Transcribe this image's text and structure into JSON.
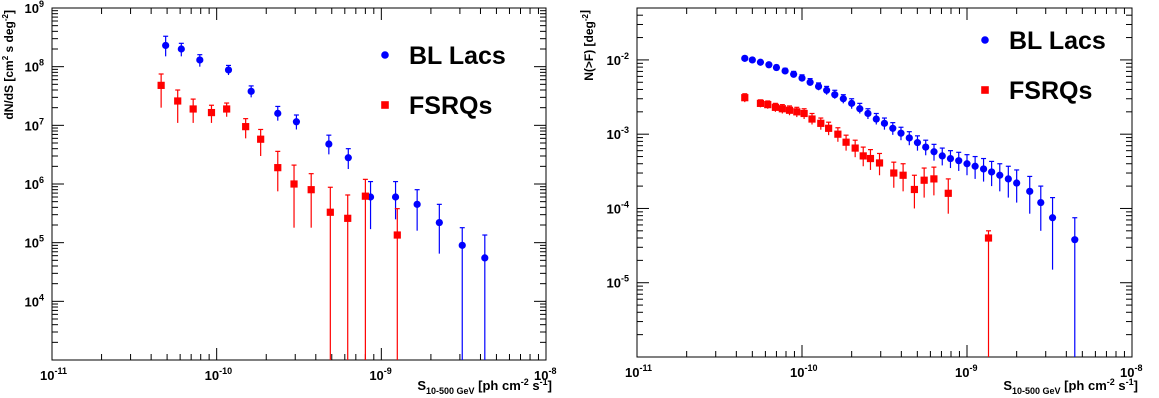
{
  "chart_data": [
    {
      "type": "scatter",
      "xscale": "log",
      "yscale": "log",
      "xlim": [
        1e-11,
        1e-08
      ],
      "ylim": [
        1000,
        1000000000.0
      ],
      "xlabel": {
        "main": "S",
        "sub": "10-500 GeV",
        "rest": " [ph cm",
        "sup": "-2",
        "rest2": " s",
        "sup2": "-1",
        "end": "]"
      },
      "ylabel": {
        "main": "dN/dS [cm",
        "sup": "2",
        "rest": " s deg",
        "sup2": "-2",
        "end": "]"
      },
      "xticks": [
        {
          "base": "10",
          "exp": "-11",
          "value": 1e-11
        },
        {
          "base": "10",
          "exp": "-10",
          "value": 1e-10
        },
        {
          "base": "10",
          "exp": "-9",
          "value": 1e-09
        },
        {
          "base": "10",
          "exp": "-8",
          "value": 1e-08
        }
      ],
      "yticks": [
        {
          "base": "10",
          "exp": "4",
          "value": 10000.0
        },
        {
          "base": "10",
          "exp": "5",
          "value": 100000.0
        },
        {
          "base": "10",
          "exp": "6",
          "value": 1000000.0
        },
        {
          "base": "10",
          "exp": "7",
          "value": 10000000.0
        },
        {
          "base": "10",
          "exp": "8",
          "value": 100000000.0
        },
        {
          "base": "10",
          "exp": "9",
          "value": 1000000000.0
        }
      ],
      "legend_position": "top-right",
      "series": [
        {
          "name": "BL Lacs",
          "color": "#0000ff",
          "marker": "circle",
          "points": [
            {
              "x": 4.9e-11,
              "y": 230000000.0,
              "ylo": 150000000.0,
              "yhi": 330000000.0
            },
            {
              "x": 6.1e-11,
              "y": 200000000.0,
              "ylo": 150000000.0,
              "yhi": 250000000.0
            },
            {
              "x": 7.9e-11,
              "y": 130000000.0,
              "ylo": 100000000.0,
              "yhi": 160000000.0
            },
            {
              "x": 1.18e-10,
              "y": 88000000.0,
              "ylo": 72000000.0,
              "yhi": 105000000.0
            },
            {
              "x": 1.62e-10,
              "y": 38000000.0,
              "ylo": 30000000.0,
              "yhi": 47000000.0
            },
            {
              "x": 2.35e-10,
              "y": 16000000.0,
              "ylo": 12000000.0,
              "yhi": 21000000.0
            },
            {
              "x": 3.05e-10,
              "y": 11500000.0,
              "ylo": 8500000.0,
              "yhi": 15000000.0
            },
            {
              "x": 4.8e-10,
              "y": 4800000.0,
              "ylo": 3200000.0,
              "yhi": 6800000.0
            },
            {
              "x": 6.3e-10,
              "y": 2800000.0,
              "ylo": 1800000.0,
              "yhi": 4000000.0
            },
            {
              "x": 8.6e-10,
              "y": 600000.0,
              "ylo": 170000.0,
              "yhi": 1100000.0
            },
            {
              "x": 1.22e-09,
              "y": 600000.0,
              "ylo": 250000.0,
              "yhi": 1100000.0
            },
            {
              "x": 1.65e-09,
              "y": 450000.0,
              "ylo": 160000.0,
              "yhi": 800000.0
            },
            {
              "x": 2.25e-09,
              "y": 220000.0,
              "ylo": 65000.0,
              "yhi": 450000.0
            },
            {
              "x": 3.1e-09,
              "y": 90000.0,
              "ylo": 1000,
              "yhi": 180000.0
            },
            {
              "x": 4.25e-09,
              "y": 55000.0,
              "ylo": 1000,
              "yhi": 135000.0
            }
          ]
        },
        {
          "name": "FSRQs",
          "color": "#ff0000",
          "marker": "square",
          "points": [
            {
              "x": 4.6e-11,
              "y": 48000000.0,
              "ylo": 20000000.0,
              "yhi": 75000000.0
            },
            {
              "x": 5.8e-11,
              "y": 26000000.0,
              "ylo": 11000000.0,
              "yhi": 40000000.0
            },
            {
              "x": 7.2e-11,
              "y": 19000000.0,
              "ylo": 11000000.0,
              "yhi": 28000000.0
            },
            {
              "x": 9.3e-11,
              "y": 16500000.0,
              "ylo": 11000000.0,
              "yhi": 22000000.0
            },
            {
              "x": 1.15e-10,
              "y": 19000000.0,
              "ylo": 14000000.0,
              "yhi": 24000000.0
            },
            {
              "x": 1.5e-10,
              "y": 9500000.0,
              "ylo": 6000000.0,
              "yhi": 13000000.0
            },
            {
              "x": 1.85e-10,
              "y": 5800000.0,
              "ylo": 3000000.0,
              "yhi": 8500000.0
            },
            {
              "x": 2.35e-10,
              "y": 1900000.0,
              "ylo": 750000.0,
              "yhi": 3600000.0
            },
            {
              "x": 2.95e-10,
              "y": 1000000.0,
              "ylo": 180000.0,
              "yhi": 2100000.0
            },
            {
              "x": 3.75e-10,
              "y": 800000.0,
              "ylo": 180000.0,
              "yhi": 1500000.0
            },
            {
              "x": 4.9e-10,
              "y": 330000.0,
              "ylo": 1000,
              "yhi": 880000.0
            },
            {
              "x": 6.25e-10,
              "y": 260000.0,
              "ylo": 1000,
              "yhi": 650000.0
            },
            {
              "x": 8e-10,
              "y": 620000.0,
              "ylo": 1000,
              "yhi": 1200000.0
            },
            {
              "x": 1.25e-09,
              "y": 135000.0,
              "ylo": 1000,
              "yhi": 380000.0
            }
          ]
        }
      ]
    },
    {
      "type": "scatter",
      "xscale": "log",
      "yscale": "log",
      "xlim": [
        1e-11,
        1e-08
      ],
      "ylim": [
        1e-06,
        0.05
      ],
      "xlabel": {
        "main": "S",
        "sub": "10-500 GeV",
        "rest": " [ph cm",
        "sup": "-2",
        "rest2": " s",
        "sup2": "-1",
        "end": "]"
      },
      "ylabel": {
        "main": "N(>F) [deg",
        "sup": "-2",
        "rest": "",
        "sup2": "",
        "end": "]"
      },
      "xticks": [
        {
          "base": "10",
          "exp": "-11",
          "value": 1e-11
        },
        {
          "base": "10",
          "exp": "-10",
          "value": 1e-10
        },
        {
          "base": "10",
          "exp": "-9",
          "value": 1e-09
        },
        {
          "base": "10",
          "exp": "-8",
          "value": 1e-08
        }
      ],
      "yticks": [
        {
          "base": "10",
          "exp": "-5",
          "value": 1e-05
        },
        {
          "base": "10",
          "exp": "-4",
          "value": 0.0001
        },
        {
          "base": "10",
          "exp": "-3",
          "value": 0.001
        },
        {
          "base": "10",
          "exp": "-2",
          "value": 0.01
        }
      ],
      "legend_position": "top-right",
      "series": [
        {
          "name": "BL Lacs",
          "color": "#0000ff",
          "marker": "circle",
          "points": [
            {
              "x": 4.5e-11,
              "y": 0.0105,
              "ylo": 0.0099,
              "yhi": 0.0111
            },
            {
              "x": 5e-11,
              "y": 0.01,
              "ylo": 0.0094,
              "yhi": 0.0106
            },
            {
              "x": 5.6e-11,
              "y": 0.0093,
              "ylo": 0.0087,
              "yhi": 0.0099
            },
            {
              "x": 6.3e-11,
              "y": 0.0086,
              "ylo": 0.008,
              "yhi": 0.0092
            },
            {
              "x": 7e-11,
              "y": 0.0079,
              "ylo": 0.0073,
              "yhi": 0.0085
            },
            {
              "x": 7.9e-11,
              "y": 0.0071,
              "ylo": 0.0065,
              "yhi": 0.0077
            },
            {
              "x": 8.9e-11,
              "y": 0.0064,
              "ylo": 0.0058,
              "yhi": 0.007
            },
            {
              "x": 1e-10,
              "y": 0.0057,
              "ylo": 0.0051,
              "yhi": 0.0063
            },
            {
              "x": 1.12e-10,
              "y": 0.005,
              "ylo": 0.0045,
              "yhi": 0.0056
            },
            {
              "x": 1.26e-10,
              "y": 0.0044,
              "ylo": 0.0039,
              "yhi": 0.0049
            },
            {
              "x": 1.41e-10,
              "y": 0.0039,
              "ylo": 0.0034,
              "yhi": 0.0044
            },
            {
              "x": 1.58e-10,
              "y": 0.0034,
              "ylo": 0.003,
              "yhi": 0.0039
            },
            {
              "x": 1.78e-10,
              "y": 0.003,
              "ylo": 0.0026,
              "yhi": 0.0034
            },
            {
              "x": 2e-10,
              "y": 0.0026,
              "ylo": 0.0022,
              "yhi": 0.003
            },
            {
              "x": 2.24e-10,
              "y": 0.0022,
              "ylo": 0.0019,
              "yhi": 0.0026
            },
            {
              "x": 2.51e-10,
              "y": 0.0019,
              "ylo": 0.0016,
              "yhi": 0.0022
            },
            {
              "x": 2.82e-10,
              "y": 0.0016,
              "ylo": 0.00135,
              "yhi": 0.0019
            },
            {
              "x": 3.16e-10,
              "y": 0.0014,
              "ylo": 0.00115,
              "yhi": 0.00165
            },
            {
              "x": 3.55e-10,
              "y": 0.0012,
              "ylo": 0.00098,
              "yhi": 0.00143
            },
            {
              "x": 3.98e-10,
              "y": 0.00103,
              "ylo": 0.00083,
              "yhi": 0.00124
            },
            {
              "x": 4.47e-10,
              "y": 0.00089,
              "ylo": 0.00071,
              "yhi": 0.00108
            },
            {
              "x": 5.01e-10,
              "y": 0.00077,
              "ylo": 0.0006,
              "yhi": 0.00095
            },
            {
              "x": 5.62e-10,
              "y": 0.00067,
              "ylo": 0.00052,
              "yhi": 0.00083
            },
            {
              "x": 6.31e-10,
              "y": 0.00058,
              "ylo": 0.00044,
              "yhi": 0.00073
            },
            {
              "x": 7.08e-10,
              "y": 0.00051,
              "ylo": 0.00038,
              "yhi": 0.00065
            },
            {
              "x": 7.94e-10,
              "y": 0.00047,
              "ylo": 0.00035,
              "yhi": 0.0006
            },
            {
              "x": 8.91e-10,
              "y": 0.00044,
              "ylo": 0.00032,
              "yhi": 0.00057
            },
            {
              "x": 1e-09,
              "y": 0.0004,
              "ylo": 0.00028,
              "yhi": 0.00053
            },
            {
              "x": 1.12e-09,
              "y": 0.00037,
              "ylo": 0.00025,
              "yhi": 0.0005
            },
            {
              "x": 1.26e-09,
              "y": 0.00034,
              "ylo": 0.00023,
              "yhi": 0.00047
            },
            {
              "x": 1.41e-09,
              "y": 0.00031,
              "ylo": 0.0002,
              "yhi": 0.00043
            },
            {
              "x": 1.58e-09,
              "y": 0.00028,
              "ylo": 0.00017,
              "yhi": 0.0004
            },
            {
              "x": 1.78e-09,
              "y": 0.00025,
              "ylo": 0.00014,
              "yhi": 0.00037
            },
            {
              "x": 2e-09,
              "y": 0.00022,
              "ylo": 0.00012,
              "yhi": 0.00033
            },
            {
              "x": 2.4e-09,
              "y": 0.00017,
              "ylo": 8.5e-05,
              "yhi": 0.00027
            },
            {
              "x": 2.8e-09,
              "y": 0.00012,
              "ylo": 5e-05,
              "yhi": 0.0002
            },
            {
              "x": 3.3e-09,
              "y": 7.5e-05,
              "ylo": 1.5e-05,
              "yhi": 0.00014
            },
            {
              "x": 4.5e-09,
              "y": 3.8e-05,
              "ylo": 1e-06,
              "yhi": 7.5e-05
            }
          ]
        },
        {
          "name": "FSRQs",
          "color": "#ff0000",
          "marker": "square",
          "points": [
            {
              "x": 4.5e-11,
              "y": 0.0031,
              "ylo": 0.0027,
              "yhi": 0.0035
            },
            {
              "x": 5.6e-11,
              "y": 0.0026,
              "ylo": 0.0023,
              "yhi": 0.0029
            },
            {
              "x": 6.2e-11,
              "y": 0.0025,
              "ylo": 0.0022,
              "yhi": 0.0028
            },
            {
              "x": 6.9e-11,
              "y": 0.0023,
              "ylo": 0.002,
              "yhi": 0.0026
            },
            {
              "x": 7.6e-11,
              "y": 0.0022,
              "ylo": 0.0019,
              "yhi": 0.0025
            },
            {
              "x": 8.4e-11,
              "y": 0.0021,
              "ylo": 0.0018,
              "yhi": 0.0024
            },
            {
              "x": 9.3e-11,
              "y": 0.002,
              "ylo": 0.0017,
              "yhi": 0.0023
            },
            {
              "x": 1.03e-10,
              "y": 0.0019,
              "ylo": 0.0016,
              "yhi": 0.0022
            },
            {
              "x": 1.15e-10,
              "y": 0.0016,
              "ylo": 0.00135,
              "yhi": 0.0019
            },
            {
              "x": 1.3e-10,
              "y": 0.0014,
              "ylo": 0.00115,
              "yhi": 0.00165
            },
            {
              "x": 1.45e-10,
              "y": 0.0012,
              "ylo": 0.00097,
              "yhi": 0.00145
            },
            {
              "x": 1.65e-10,
              "y": 0.001,
              "ylo": 0.00079,
              "yhi": 0.00122
            },
            {
              "x": 1.85e-10,
              "y": 0.00078,
              "ylo": 0.0006,
              "yhi": 0.00097
            },
            {
              "x": 2.1e-10,
              "y": 0.00065,
              "ylo": 0.00049,
              "yhi": 0.00083
            },
            {
              "x": 2.35e-10,
              "y": 0.00051,
              "ylo": 0.00037,
              "yhi": 0.00067
            },
            {
              "x": 2.6e-10,
              "y": 0.00047,
              "ylo": 0.00033,
              "yhi": 0.00062
            },
            {
              "x": 2.95e-10,
              "y": 0.00041,
              "ylo": 0.00028,
              "yhi": 0.00055
            },
            {
              "x": 3.6e-10,
              "y": 0.0003,
              "ylo": 0.00019,
              "yhi": 0.00042
            },
            {
              "x": 4.1e-10,
              "y": 0.00028,
              "ylo": 0.00017,
              "yhi": 0.0004
            },
            {
              "x": 4.8e-10,
              "y": 0.00018,
              "ylo": 0.0001,
              "yhi": 0.00028
            },
            {
              "x": 5.5e-10,
              "y": 0.00024,
              "ylo": 0.00014,
              "yhi": 0.00035
            },
            {
              "x": 6.3e-10,
              "y": 0.00025,
              "ylo": 0.00015,
              "yhi": 0.00036
            },
            {
              "x": 7.7e-10,
              "y": 0.00016,
              "ylo": 8.5e-05,
              "yhi": 0.00025
            },
            {
              "x": 1.35e-09,
              "y": 4e-05,
              "ylo": 1e-06,
              "yhi": 5e-05
            }
          ]
        }
      ]
    }
  ]
}
